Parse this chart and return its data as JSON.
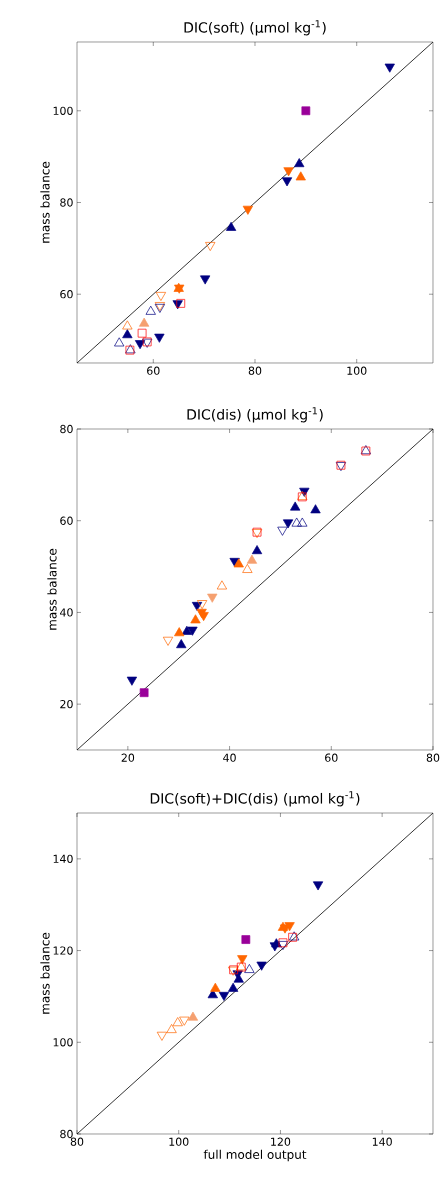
{
  "chart_data": [
    {
      "type": "scatter",
      "title": "DIC(soft) (μmol kg$^{-1}$)",
      "ylabel": "mass balance",
      "xlim": [
        45,
        115
      ],
      "ylim": [
        45,
        115
      ],
      "xticks": [
        60,
        80,
        100
      ],
      "yticks": [
        60,
        80,
        100
      ],
      "grid": false,
      "series": [
        {
          "type": "line",
          "color": "#000000",
          "marker": "none",
          "x": [
            45,
            115
          ],
          "values": [
            45,
            115
          ]
        },
        {
          "color": "#000080",
          "marker": "triangle_down",
          "x": [
            106.5,
            70.2,
            61.2,
            86.3,
            64.8,
            57.4
          ],
          "values": [
            109.6,
            63.4,
            50.7,
            84.8,
            58,
            49.3
          ]
        },
        {
          "color": "#000080",
          "marker": "triangle",
          "x": [
            88.7,
            75.3,
            54.9
          ],
          "values": [
            88.4,
            74.5,
            51.1
          ]
        },
        {
          "color": "#ff6600",
          "marker": "triangle_down",
          "x": [
            78.6,
            86.6,
            65.1
          ],
          "values": [
            78.6,
            87.0,
            61.4
          ]
        },
        {
          "color": "#ff6600",
          "marker": "triangle",
          "x": [
            89,
            65
          ],
          "values": [
            85.5,
            61.2
          ]
        },
        {
          "color": "#f5a070",
          "marker": "triangle",
          "x": [
            58.2
          ],
          "values": [
            53.6
          ]
        },
        {
          "color": "#ff6600",
          "marker": "triangle_down_open",
          "x": [
            71.2,
            61.5,
            61.3
          ],
          "values": [
            70.7,
            59.8,
            57.6
          ]
        },
        {
          "color": "#ff6600",
          "marker": "triangle_open",
          "x": [
            54.9
          ],
          "values": [
            53
          ]
        },
        {
          "color": "#000080",
          "marker": "triangle_open",
          "x": [
            59.5,
            53.3,
            55.5
          ],
          "values": [
            56.2,
            49.3,
            47.8
          ]
        },
        {
          "color": "#000080",
          "marker": "triangle_down_open",
          "x": [
            61.3,
            58.8
          ],
          "values": [
            57.2,
            49.6
          ]
        },
        {
          "color": "#ff0000",
          "marker": "square_open",
          "x": [
            65.4,
            55.4,
            58.8,
            57.8
          ],
          "values": [
            58,
            47.8,
            49.6,
            51.5
          ]
        },
        {
          "color": "#990099",
          "marker": "square",
          "x": [
            90
          ],
          "values": [
            100
          ]
        }
      ]
    },
    {
      "type": "scatter",
      "title": "DIC(dis) (μmol kg$^{-1}$)",
      "ylabel": "mass balance",
      "xlim": [
        10,
        80
      ],
      "ylim": [
        10,
        80
      ],
      "xticks": [
        20,
        40,
        60,
        80
      ],
      "yticks": [
        20,
        40,
        60,
        80
      ],
      "grid": false,
      "series": [
        {
          "type": "line",
          "color": "#000000",
          "marker": "none",
          "x": [
            10,
            80
          ],
          "values": [
            10,
            80
          ]
        },
        {
          "color": "#000080",
          "marker": "triangle_down",
          "x": [
            20.8,
            41,
            54.7,
            33.6,
            32.7,
            51.5
          ],
          "values": [
            25.3,
            51.2,
            66.5,
            41.6,
            36.2,
            59.6
          ]
        },
        {
          "color": "#000080",
          "marker": "triangle",
          "x": [
            30.5,
            31.6,
            45.4,
            52.9,
            56.9
          ],
          "values": [
            32.9,
            35.8,
            53.4,
            62.9,
            62.3
          ]
        },
        {
          "color": "#ff6600",
          "marker": "triangle",
          "x": [
            30.1,
            41.8,
            33.3
          ],
          "values": [
            35.5,
            50.5,
            38.3
          ]
        },
        {
          "color": "#f5a070",
          "marker": "triangle",
          "x": [
            44.4
          ],
          "values": [
            51.3
          ]
        },
        {
          "color": "#ff6600",
          "marker": "triangle_down",
          "x": [
            34.5,
            34.9
          ],
          "values": [
            40.1,
            39.4
          ]
        },
        {
          "color": "#f5a070",
          "marker": "triangle_down",
          "x": [
            36.6
          ],
          "values": [
            43.4
          ]
        },
        {
          "color": "#ff6600",
          "marker": "triangle_down_open",
          "x": [
            27.9,
            45.4,
            34.6
          ],
          "values": [
            34,
            57.5,
            42
          ]
        },
        {
          "color": "#ff6600",
          "marker": "triangle_open",
          "x": [
            38.5,
            43.5,
            54.3
          ],
          "values": [
            45.7,
            49.3,
            65.2
          ]
        },
        {
          "color": "#000080",
          "marker": "triangle_down_open",
          "x": [
            50.4,
            61.9
          ],
          "values": [
            58,
            72.1
          ]
        },
        {
          "color": "#000080",
          "marker": "triangle_open",
          "x": [
            54.3,
            66.8,
            53.2
          ],
          "values": [
            59.4,
            75.2,
            59.4
          ]
        },
        {
          "color": "#ff0000",
          "marker": "square_open",
          "x": [
            45.4,
            54.3,
            61.9,
            66.8
          ],
          "values": [
            57.5,
            65.2,
            72.1,
            75.2
          ]
        },
        {
          "color": "#990099",
          "marker": "square",
          "x": [
            23.2
          ],
          "values": [
            22.5
          ]
        }
      ]
    },
    {
      "type": "scatter",
      "title": "DIC(soft)+DIC(dis) (μmol kg$^{-1}$)",
      "xlabel": "full model output",
      "ylabel": "mass balance",
      "xlim": [
        80,
        150
      ],
      "ylim": [
        80,
        150
      ],
      "xticks": [
        80,
        100,
        120,
        140
      ],
      "yticks": [
        80,
        100,
        120,
        140
      ],
      "grid": false,
      "series": [
        {
          "type": "line",
          "color": "#000000",
          "marker": "none",
          "x": [
            80,
            150
          ],
          "values": [
            80,
            150
          ]
        },
        {
          "color": "#000080",
          "marker": "triangle_down",
          "x": [
            127.4,
            116.3,
            111.6,
            118.9,
            108.9
          ],
          "values": [
            134.4,
            116.9,
            115,
            121.1,
            110.3
          ]
        },
        {
          "color": "#000080",
          "marker": "triangle",
          "x": [
            106.7,
            110.7,
            119.2,
            111.8
          ],
          "values": [
            110.3,
            111.7,
            121.4,
            113.7
          ]
        },
        {
          "color": "#ff6600",
          "marker": "triangle_down",
          "x": [
            112.5,
            121.8,
            120.9
          ],
          "values": [
            118.3,
            125.5,
            125
          ]
        },
        {
          "color": "#ff6600",
          "marker": "triangle",
          "x": [
            107.2,
            120.5
          ],
          "values": [
            111.7,
            125
          ]
        },
        {
          "color": "#f5a070",
          "marker": "triangle",
          "x": [
            102.8
          ],
          "values": [
            105.4
          ]
        },
        {
          "color": "#ff6600",
          "marker": "triangle_down_open",
          "x": [
            96.7,
            101.1,
            110.7
          ],
          "values": [
            101.6,
            104.9,
            115.8
          ]
        },
        {
          "color": "#ff6600",
          "marker": "triangle_open",
          "x": [
            98.6,
            99.8,
            112.3
          ],
          "values": [
            102.7,
            104.2,
            116.4
          ]
        },
        {
          "color": "#000080",
          "marker": "triangle_open",
          "x": [
            113.9,
            122.7
          ],
          "values": [
            115.8,
            122.9
          ]
        },
        {
          "color": "#000080",
          "marker": "triangle_down_open",
          "x": [
            120.5
          ],
          "values": [
            121.4
          ]
        },
        {
          "color": "#ff0000",
          "marker": "square_open",
          "x": [
            110.8,
            112.3,
            120.5,
            122.4
          ],
          "values": [
            115.8,
            116.4,
            121.7,
            122.9
          ]
        },
        {
          "color": "#990099",
          "marker": "square",
          "x": [
            113.2
          ],
          "values": [
            122.4
          ]
        }
      ]
    }
  ]
}
